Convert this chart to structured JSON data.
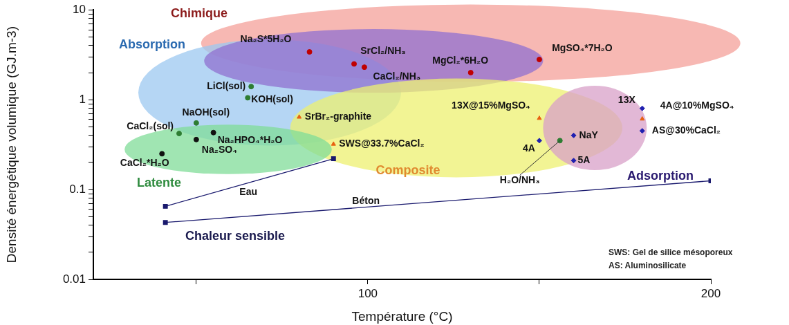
{
  "chart_data": {
    "type": "scatter",
    "xlabel": "Température (°C)",
    "ylabel": "Densité énergétique volumique (GJ.m-3)",
    "xlim": [
      20,
      200
    ],
    "xticks": [
      {
        "value": 50,
        "label": null
      },
      100,
      {
        "value": 150,
        "label": null
      },
      200
    ],
    "ylim": [
      0.01,
      10
    ],
    "log": "y",
    "yticks": [
      0.01,
      {
        "value": 0.02,
        "label": null
      },
      {
        "value": 0.03,
        "label": null
      },
      {
        "value": 0.04,
        "label": null
      },
      {
        "value": 0.05,
        "label": null
      },
      {
        "value": 0.06,
        "label": null
      },
      {
        "value": 0.07,
        "label": null
      },
      {
        "value": 0.08,
        "label": null
      },
      {
        "value": 0.09,
        "label": null
      },
      0.1,
      {
        "value": 0.2,
        "label": null
      },
      {
        "value": 0.3,
        "label": null
      },
      {
        "value": 0.4,
        "label": null
      },
      {
        "value": 0.5,
        "label": null
      },
      {
        "value": 0.6,
        "label": null
      },
      {
        "value": 0.7,
        "label": null
      },
      {
        "value": 0.8,
        "label": null
      },
      {
        "value": 0.9,
        "label": null
      },
      1,
      {
        "value": 2,
        "label": null
      },
      {
        "value": 3,
        "label": null
      },
      {
        "value": 4,
        "label": null
      },
      {
        "value": 5,
        "label": null
      },
      {
        "value": 6,
        "label": null
      },
      {
        "value": 7,
        "label": null
      },
      {
        "value": 8,
        "label": null
      },
      {
        "value": 9,
        "label": null
      },
      10
    ],
    "grid": false,
    "legend": false,
    "series": [
      {
        "name": "Na₂S*5H₂O",
        "color": "#c00000",
        "marker": "circle",
        "x": [
          83
        ],
        "values": [
          3.4
        ]
      },
      {
        "name": "SrCl₂/NH₃",
        "color": "#c00000",
        "marker": "circle",
        "x": [
          96
        ],
        "values": [
          2.5
        ]
      },
      {
        "name": "CaCl₂/NH₃",
        "color": "#c00000",
        "marker": "circle",
        "x": [
          99
        ],
        "values": [
          2.3
        ]
      },
      {
        "name": "MgCl₂*6H₂O",
        "color": "#c00000",
        "marker": "circle",
        "x": [
          130
        ],
        "values": [
          2.0
        ]
      },
      {
        "name": "MgSO₄*7H₂O",
        "color": "#c00000",
        "marker": "circle",
        "x": [
          150
        ],
        "values": [
          2.8
        ]
      },
      {
        "name": "LiCl(sol)",
        "color": "#2e7d32",
        "marker": "circle",
        "x": [
          66
        ],
        "values": [
          1.4
        ]
      },
      {
        "name": "KOH(sol)",
        "color": "#2e7d32",
        "marker": "circle",
        "x": [
          65
        ],
        "values": [
          1.05
        ]
      },
      {
        "name": "NaOH(sol)",
        "color": "#2e7d32",
        "marker": "circle",
        "x": [
          50
        ],
        "values": [
          0.55
        ]
      },
      {
        "name": "CaCl₂(sol)",
        "color": "#2e7d32",
        "marker": "circle",
        "x": [
          45
        ],
        "values": [
          0.42
        ]
      },
      {
        "name": "Na₂HPO₄*H₂O",
        "color": "#111111",
        "marker": "circle",
        "x": [
          55
        ],
        "values": [
          0.43
        ]
      },
      {
        "name": "Na₂SO₄",
        "color": "#111111",
        "marker": "circle",
        "x": [
          50
        ],
        "values": [
          0.36
        ]
      },
      {
        "name": "CaCl₂*H₂O",
        "color": "#111111",
        "marker": "circle",
        "x": [
          40
        ],
        "values": [
          0.25
        ]
      },
      {
        "name": "SrBr₂-graphite",
        "color": "#e86010",
        "marker": "triangle",
        "x": [
          80
        ],
        "values": [
          0.64
        ]
      },
      {
        "name": "SWS@33.7%CaCl₂",
        "color": "#e86010",
        "marker": "triangle",
        "x": [
          90
        ],
        "values": [
          0.32
        ]
      },
      {
        "name": "13X@15%MgSO₄",
        "color": "#e86010",
        "marker": "triangle",
        "x": [
          150
        ],
        "values": [
          0.62
        ]
      },
      {
        "name": "13X",
        "color": "#2020b0",
        "marker": "diamond",
        "x": [
          180
        ],
        "values": [
          0.8
        ]
      },
      {
        "name": "4A@10%MgSO₄",
        "color": "#e86010",
        "marker": "triangle",
        "x": [
          180
        ],
        "values": [
          0.61
        ]
      },
      {
        "name": "AS@30%CaCl₂",
        "color": "#2020b0",
        "marker": "diamond",
        "x": [
          180
        ],
        "values": [
          0.45
        ]
      },
      {
        "name": "NaY",
        "color": "#2020b0",
        "marker": "diamond",
        "x": [
          160
        ],
        "values": [
          0.4
        ]
      },
      {
        "name": "4A",
        "color": "#2020b0",
        "marker": "diamond",
        "x": [
          150
        ],
        "values": [
          0.35
        ]
      },
      {
        "name": "H₂O/NH₃",
        "color": "#2e7d32",
        "marker": "circle",
        "x": [
          156
        ],
        "values": [
          0.35
        ]
      },
      {
        "name": "5A",
        "color": "#2020b0",
        "marker": "diamond",
        "x": [
          160
        ],
        "values": [
          0.21
        ]
      },
      {
        "name": "Eau",
        "type": "line",
        "color": "#1a1a6e",
        "marker": "square",
        "x": [
          41,
          90
        ],
        "values": [
          0.065,
          0.22
        ]
      },
      {
        "name": "Béton",
        "type": "line",
        "color": "#1a1a6e",
        "marker": "square",
        "x": [
          41,
          200
        ],
        "values": [
          0.043,
          0.125
        ]
      }
    ],
    "annotations": [
      "Chimique",
      "Absorption",
      "Latente",
      "Composite",
      "Adsorption",
      "Chaleur sensible",
      "SWS: Gel de silice mésoporeux",
      "AS: Aluminosilicate"
    ]
  }
}
